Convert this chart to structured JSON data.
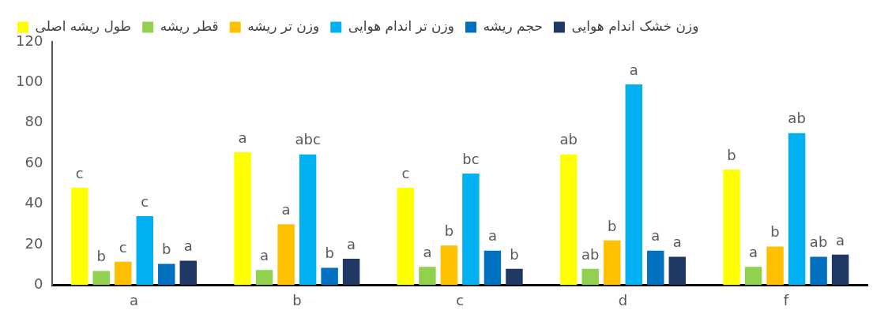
{
  "chart_data": {
    "type": "bar",
    "categories": [
      "a",
      "b",
      "c",
      "d",
      "f"
    ],
    "ylim": [
      0,
      120
    ],
    "yticks": [
      0,
      20,
      40,
      60,
      80,
      100,
      120
    ],
    "grid": false,
    "legend": "top",
    "series": [
      {
        "name": "طول ریشه اصلی",
        "color": "#ffff00",
        "values": [
          48,
          65.5,
          48,
          64.5,
          57
        ],
        "value_labels": [
          "c",
          "a",
          "c",
          "ab",
          "b"
        ]
      },
      {
        "name": "قطر ریشه",
        "color": "#92d050",
        "values": [
          7,
          7.5,
          9,
          8,
          9
        ],
        "value_labels": [
          "b",
          "a",
          "a",
          "ab",
          "a"
        ]
      },
      {
        "name": "وزن تر ریشه",
        "color": "#ffc000",
        "values": [
          11.5,
          30,
          19.5,
          22,
          19
        ],
        "value_labels": [
          "c",
          "a",
          "b",
          "b",
          "b"
        ]
      },
      {
        "name": "وزن تر اندام هوایی",
        "color": "#00b0f0",
        "values": [
          34,
          64.5,
          55,
          99,
          75
        ],
        "value_labels": [
          "c",
          "abc",
          "bc",
          "a",
          "ab"
        ]
      },
      {
        "name": "حجم ریشه",
        "color": "#0070c0",
        "values": [
          10.5,
          8.5,
          17,
          17,
          14
        ],
        "value_labels": [
          "b",
          "b",
          "a",
          "a",
          "ab"
        ]
      },
      {
        "name": "وزن خشک اندام هوایی",
        "color": "#203864",
        "values": [
          12,
          13,
          8,
          14,
          15
        ],
        "value_labels": [
          "a",
          "a",
          "b",
          "a",
          "a"
        ]
      }
    ]
  }
}
